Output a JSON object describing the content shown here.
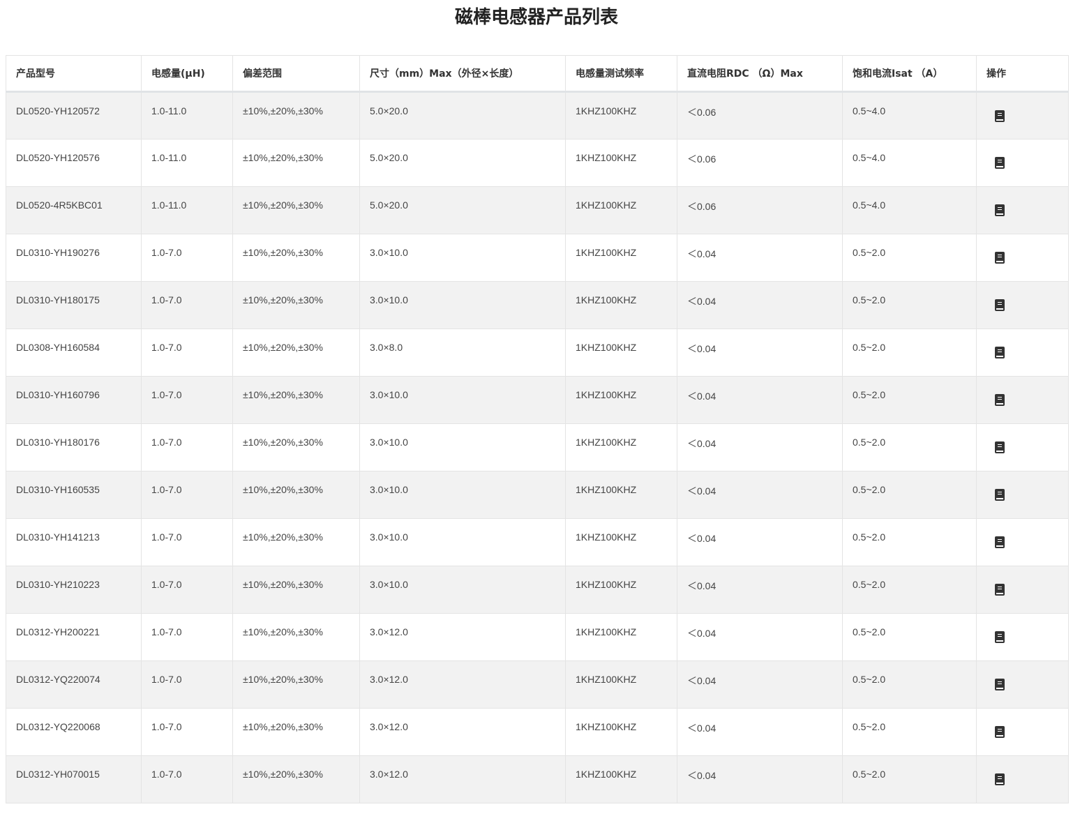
{
  "title": "磁棒电感器产品列表",
  "headers": [
    "产品型号",
    "电感量(μH)",
    "偏差范围",
    "尺寸（mm）Max（外径×长度）",
    "电感量测试频率",
    "直流电阻RDC （Ω）Max",
    "饱和电流Isat （A）",
    "操作"
  ],
  "action_icon": "book-icon",
  "rows": [
    [
      "DL0520-YH120572",
      "1.0-11.0",
      "±10%,±20%,±30%",
      "5.0×20.0",
      "1KHZ100KHZ",
      "＜0.06",
      "0.5~4.0"
    ],
    [
      "DL0520-YH120576",
      "1.0-11.0",
      "±10%,±20%,±30%",
      "5.0×20.0",
      "1KHZ100KHZ",
      "＜0.06",
      "0.5~4.0"
    ],
    [
      "DL0520-4R5KBC01",
      "1.0-11.0",
      "±10%,±20%,±30%",
      "5.0×20.0",
      "1KHZ100KHZ",
      "＜0.06",
      "0.5~4.0"
    ],
    [
      "DL0310-YH190276",
      "1.0-7.0",
      "±10%,±20%,±30%",
      "3.0×10.0",
      "1KHZ100KHZ",
      "＜0.04",
      "0.5~2.0"
    ],
    [
      "DL0310-YH180175",
      "1.0-7.0",
      "±10%,±20%,±30%",
      "3.0×10.0",
      "1KHZ100KHZ",
      "＜0.04",
      "0.5~2.0"
    ],
    [
      "DL0308-YH160584",
      "1.0-7.0",
      "±10%,±20%,±30%",
      "3.0×8.0",
      "1KHZ100KHZ",
      "＜0.04",
      "0.5~2.0"
    ],
    [
      "DL0310-YH160796",
      "1.0-7.0",
      "±10%,±20%,±30%",
      "3.0×10.0",
      "1KHZ100KHZ",
      "＜0.04",
      "0.5~2.0"
    ],
    [
      "DL0310-YH180176",
      "1.0-7.0",
      "±10%,±20%,±30%",
      "3.0×10.0",
      "1KHZ100KHZ",
      "＜0.04",
      "0.5~2.0"
    ],
    [
      "DL0310-YH160535",
      "1.0-7.0",
      "±10%,±20%,±30%",
      "3.0×10.0",
      "1KHZ100KHZ",
      "＜0.04",
      "0.5~2.0"
    ],
    [
      "DL0310-YH141213",
      "1.0-7.0",
      "±10%,±20%,±30%",
      "3.0×10.0",
      "1KHZ100KHZ",
      "＜0.04",
      "0.5~2.0"
    ],
    [
      "DL0310-YH210223",
      "1.0-7.0",
      "±10%,±20%,±30%",
      "3.0×10.0",
      "1KHZ100KHZ",
      "＜0.04",
      "0.5~2.0"
    ],
    [
      "DL0312-YH200221",
      "1.0-7.0",
      "±10%,±20%,±30%",
      "3.0×12.0",
      "1KHZ100KHZ",
      "＜0.04",
      "0.5~2.0"
    ],
    [
      "DL0312-YQ220074",
      "1.0-7.0",
      "±10%,±20%,±30%",
      "3.0×12.0",
      "1KHZ100KHZ",
      "＜0.04",
      "0.5~2.0"
    ],
    [
      "DL0312-YQ220068",
      "1.0-7.0",
      "±10%,±20%,±30%",
      "3.0×12.0",
      "1KHZ100KHZ",
      "＜0.04",
      "0.5~2.0"
    ],
    [
      "DL0312-YH070015",
      "1.0-7.0",
      "±10%,±20%,±30%",
      "3.0×12.0",
      "1KHZ100KHZ",
      "＜0.04",
      "0.5~2.0"
    ]
  ]
}
